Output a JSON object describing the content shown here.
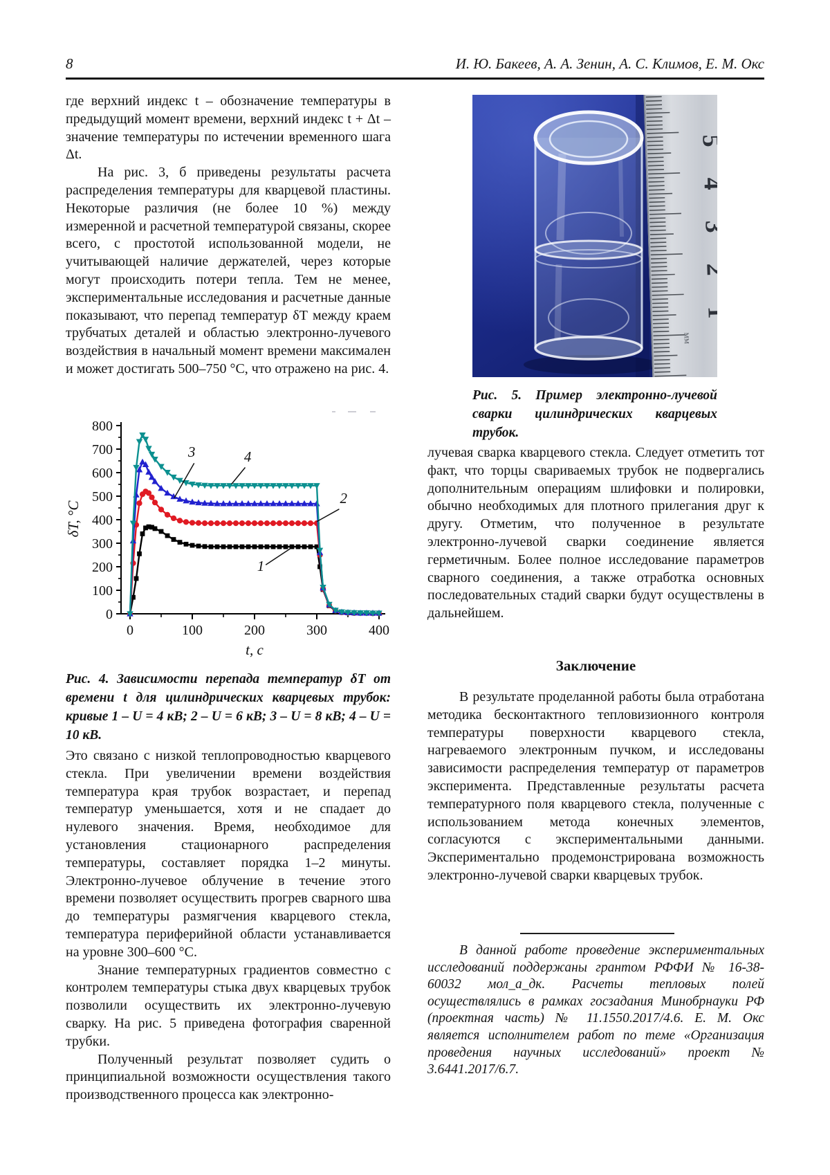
{
  "header": {
    "page_number": "8",
    "authors": "И. Ю. Бакеев, А. А. Зенин, А. С. Климов, Е. М. Окс"
  },
  "left_column": {
    "para1": "где верхний индекс t – обозначение температуры в предыдущий момент времени, верхний индекс t + Δt – значение температуры по истечении временного шага Δt.",
    "para2": "На рис. 3, б приведены результаты расчета распределения температуры для кварцевой пластины. Некоторые различия (не более 10 %) между измеренной и расчетной температурой связаны, скорее всего, с простотой использованной модели, не учитывающей наличие держателей, через которые могут происходить потери тепла. Тем не менее, экспериментальные исследования и расчетные данные показывают, что перепад температур δT между краем трубчатых деталей и областью электронно-лучевого воздействия в начальный момент времени максимален и может достигать 500–750 °C, что отражено на рис. 4.",
    "fig4_caption": "Рис. 4. Зависимости перепада температур δT от времени t для цилиндрических кварцевых трубок: кривые 1 – U = 4 кВ; 2 – U = 6 кВ; 3 – U = 8 кВ; 4 – U = 10 кВ.",
    "para3": "Это связано с низкой теплопроводностью кварцевого стекла. При увеличении времени воздействия температура края трубок возрастает, и перепад температур уменьшается, хотя и не спадает до нулевого значения. Время, необходимое для установления стационарного распределения температуры, составляет порядка 1–2 минуты. Электронно-лучевое облучение в течение этого времени позволяет осуществить прогрев сварного шва до температуры размягчения кварцевого стекла, температура периферийной области устанавливается на уровне 300–600 °C.",
    "para4": "Знание температурных градиентов совместно с контролем температуры стыка двух кварцевых трубок позволили осуществить их электронно-лучевую сварку. На рис. 5 приведена фотография сваренной трубки.",
    "para5": "Полученный результат позволяет судить о принципиальной возможности осуществления такого производственного процесса как электронно-"
  },
  "right_column": {
    "fig5_caption": "Рис. 5. Пример электронно-лучевой сварки цилиндрических кварцевых трубок.",
    "para1": "лучевая сварка кварцевого стекла. Следует отметить тот факт, что торцы свариваемых трубок не подвергались дополнительным операциям шлифовки и полировки, обычно необходимых для плотного прилегания друг к другу. Отметим, что полученное в результате электронно-лучевой сварки соединение является герметичным. Более полное исследование параметров сварного соединения, а также отработка основных последовательных стадий сварки будут осуществлены в дальнейшем.",
    "conclusion_heading": "Заключение",
    "para2": "В результате проделанной работы была отработана методика бесконтактного тепловизионного контроля температуры поверхности кварцевого стекла, нагреваемого электронным пучком, и исследованы зависимости распределения температур от параметров эксперимента. Представленные результаты расчета температурного поля кварцевого стекла, полученные с использованием метода конечных элементов, согласуются с экспериментальными данными. Экспериментально продемонстрирована возможность электронно-лучевой сварки кварцевых трубок.",
    "footnote": "В данной работе проведение экспериментальных исследований поддержаны грантом РФФИ № 16-38-60032 мол_а_дк. Расчеты тепловых полей осуществлялись в рамках госзадания Минобрнауки РФ (проектная часть) № 11.1550.2017/4.6. Е. М. Окс является исполнителем работ по теме «Организация проведения научных исследований» проект № 3.6441.2017/6.7."
  },
  "figure5": {
    "ruler_numbers": [
      "5",
      "4",
      "3",
      "2",
      "1"
    ],
    "ruler_unit_label": "мм"
  },
  "chart_data": {
    "type": "line",
    "title": "",
    "xlabel": "t, c",
    "ylabel": "δT, °C",
    "xlim": [
      0,
      400
    ],
    "ylim": [
      0,
      800
    ],
    "xticks": [
      0,
      100,
      200,
      300,
      400
    ],
    "yticks": [
      0,
      100,
      200,
      300,
      400,
      500,
      600,
      700,
      800
    ],
    "grid": false,
    "legend": "none (numbered curve labels on plot)",
    "series": [
      {
        "name": "1",
        "label": "1 – U = 4 кВ",
        "color": "#000000",
        "marker": "square",
        "points": [
          [
            0,
            0
          ],
          [
            5,
            70
          ],
          [
            10,
            150
          ],
          [
            15,
            255
          ],
          [
            20,
            340
          ],
          [
            25,
            365
          ],
          [
            30,
            370
          ],
          [
            35,
            368
          ],
          [
            40,
            362
          ],
          [
            50,
            350
          ],
          [
            60,
            332
          ],
          [
            70,
            316
          ],
          [
            80,
            304
          ],
          [
            90,
            296
          ],
          [
            100,
            291
          ],
          [
            110,
            288
          ],
          [
            120,
            286
          ],
          [
            130,
            285
          ],
          [
            140,
            285
          ],
          [
            150,
            285
          ],
          [
            160,
            285
          ],
          [
            170,
            285
          ],
          [
            180,
            285
          ],
          [
            190,
            285
          ],
          [
            200,
            285
          ],
          [
            210,
            285
          ],
          [
            220,
            285
          ],
          [
            230,
            285
          ],
          [
            240,
            285
          ],
          [
            250,
            285
          ],
          [
            260,
            285
          ],
          [
            270,
            285
          ],
          [
            280,
            285
          ],
          [
            290,
            285
          ],
          [
            300,
            285
          ],
          [
            305,
            200
          ],
          [
            310,
            103
          ],
          [
            320,
            34
          ],
          [
            330,
            12
          ],
          [
            340,
            6
          ],
          [
            350,
            4
          ],
          [
            360,
            3
          ],
          [
            370,
            3
          ],
          [
            380,
            3
          ],
          [
            390,
            2
          ],
          [
            400,
            2
          ]
        ]
      },
      {
        "name": "2",
        "label": "2 – U = 6 кВ",
        "color": "#e01a23",
        "marker": "circle",
        "points": [
          [
            0,
            0
          ],
          [
            5,
            215
          ],
          [
            10,
            378
          ],
          [
            15,
            470
          ],
          [
            20,
            508
          ],
          [
            25,
            520
          ],
          [
            30,
            513
          ],
          [
            35,
            495
          ],
          [
            40,
            473
          ],
          [
            50,
            443
          ],
          [
            60,
            421
          ],
          [
            70,
            406
          ],
          [
            80,
            396
          ],
          [
            90,
            390
          ],
          [
            100,
            387
          ],
          [
            110,
            386
          ],
          [
            120,
            385
          ],
          [
            130,
            385
          ],
          [
            140,
            385
          ],
          [
            150,
            385
          ],
          [
            160,
            385
          ],
          [
            170,
            385
          ],
          [
            180,
            385
          ],
          [
            190,
            385
          ],
          [
            200,
            385
          ],
          [
            210,
            385
          ],
          [
            220,
            385
          ],
          [
            230,
            385
          ],
          [
            240,
            385
          ],
          [
            250,
            385
          ],
          [
            260,
            385
          ],
          [
            270,
            385
          ],
          [
            280,
            385
          ],
          [
            290,
            385
          ],
          [
            300,
            385
          ],
          [
            305,
            250
          ],
          [
            310,
            106
          ],
          [
            320,
            36
          ],
          [
            330,
            13
          ],
          [
            340,
            6
          ],
          [
            350,
            4
          ],
          [
            360,
            3
          ],
          [
            370,
            3
          ],
          [
            380,
            3
          ],
          [
            390,
            2
          ],
          [
            400,
            2
          ]
        ]
      },
      {
        "name": "3",
        "label": "3 – U = 8 кВ",
        "color": "#2222cf",
        "marker": "triangle-up",
        "points": [
          [
            0,
            0
          ],
          [
            5,
            310
          ],
          [
            10,
            505
          ],
          [
            15,
            612
          ],
          [
            20,
            645
          ],
          [
            25,
            634
          ],
          [
            30,
            602
          ],
          [
            35,
            580
          ],
          [
            40,
            562
          ],
          [
            50,
            533
          ],
          [
            60,
            513
          ],
          [
            70,
            498
          ],
          [
            80,
            487
          ],
          [
            90,
            480
          ],
          [
            100,
            475
          ],
          [
            110,
            472
          ],
          [
            120,
            470
          ],
          [
            130,
            469
          ],
          [
            140,
            468
          ],
          [
            150,
            468
          ],
          [
            160,
            468
          ],
          [
            170,
            468
          ],
          [
            180,
            468
          ],
          [
            190,
            468
          ],
          [
            200,
            468
          ],
          [
            210,
            468
          ],
          [
            220,
            468
          ],
          [
            230,
            468
          ],
          [
            240,
            468
          ],
          [
            250,
            468
          ],
          [
            260,
            468
          ],
          [
            270,
            468
          ],
          [
            280,
            468
          ],
          [
            290,
            468
          ],
          [
            300,
            468
          ],
          [
            305,
            260
          ],
          [
            310,
            110
          ],
          [
            320,
            38
          ],
          [
            330,
            14
          ],
          [
            340,
            7
          ],
          [
            350,
            5
          ],
          [
            360,
            4
          ],
          [
            370,
            3
          ],
          [
            380,
            3
          ],
          [
            390,
            3
          ],
          [
            400,
            3
          ]
        ]
      },
      {
        "name": "4",
        "label": "4 – U = 10 кВ",
        "color": "#0c9090",
        "marker": "triangle-down",
        "points": [
          [
            0,
            0
          ],
          [
            5,
            385
          ],
          [
            10,
            622
          ],
          [
            15,
            732
          ],
          [
            20,
            760
          ],
          [
            25,
            742
          ],
          [
            30,
            703
          ],
          [
            35,
            678
          ],
          [
            40,
            657
          ],
          [
            50,
            626
          ],
          [
            60,
            601
          ],
          [
            70,
            581
          ],
          [
            80,
            567
          ],
          [
            90,
            557
          ],
          [
            100,
            551
          ],
          [
            110,
            548
          ],
          [
            120,
            546
          ],
          [
            130,
            545
          ],
          [
            140,
            545
          ],
          [
            150,
            545
          ],
          [
            160,
            545
          ],
          [
            170,
            545
          ],
          [
            180,
            545
          ],
          [
            190,
            545
          ],
          [
            200,
            545
          ],
          [
            210,
            545
          ],
          [
            220,
            545
          ],
          [
            230,
            545
          ],
          [
            240,
            545
          ],
          [
            250,
            545
          ],
          [
            260,
            545
          ],
          [
            270,
            545
          ],
          [
            280,
            545
          ],
          [
            290,
            545
          ],
          [
            300,
            545
          ],
          [
            305,
            270
          ],
          [
            310,
            113
          ],
          [
            320,
            40
          ],
          [
            330,
            15
          ],
          [
            340,
            8
          ],
          [
            350,
            6
          ],
          [
            360,
            5
          ],
          [
            370,
            4
          ],
          [
            380,
            4
          ],
          [
            390,
            3
          ],
          [
            400,
            3
          ]
        ]
      }
    ],
    "annotations": [
      {
        "label": "1",
        "label_t": 210,
        "label_v": 182,
        "line_from": [
          218,
          208
        ],
        "line_to": [
          258,
          278
        ]
      },
      {
        "label": "2",
        "label_t": 343,
        "label_v": 470,
        "line_from": [
          336,
          445
        ],
        "line_to": [
          300,
          392
        ]
      },
      {
        "label": "3",
        "label_t": 99,
        "label_v": 668,
        "line_from": [
          103,
          640
        ],
        "line_to": [
          71,
          492
        ]
      },
      {
        "label": "4",
        "label_t": 189,
        "label_v": 647,
        "line_from": [
          185,
          622
        ],
        "line_to": [
          163,
          551
        ]
      }
    ]
  }
}
